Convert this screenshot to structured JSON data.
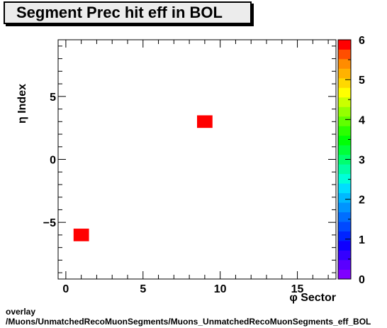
{
  "chart_data": {
    "type": "heatmap",
    "title": "Segment Prec hit eff in BOL",
    "xlabel": "φ Sector",
    "ylabel": "η Index",
    "xlim": [
      -0.5,
      17.5
    ],
    "ylim": [
      -9.5,
      9.5
    ],
    "zlim": [
      0,
      6
    ],
    "xticks": [
      0,
      5,
      10,
      15
    ],
    "yticks": [
      -5,
      0,
      5
    ],
    "zticks": [
      0,
      1,
      2,
      3,
      4,
      5,
      6
    ],
    "cells": [
      {
        "x": 1,
        "y": -6,
        "z": 6
      },
      {
        "x": 9,
        "y": 3,
        "z": 6
      }
    ],
    "palette": [
      "#7f00ff",
      "#5a00ff",
      "#3400ff",
      "#0f00ff",
      "#0024ff",
      "#0049ff",
      "#006eff",
      "#0094ff",
      "#00b9ff",
      "#00deff",
      "#00ffd9",
      "#00ffa4",
      "#00ff6f",
      "#00ff3a",
      "#00ff06",
      "#2bff00",
      "#60ff00",
      "#95ff00",
      "#caff00",
      "#ffff00",
      "#ffd800",
      "#ffb200",
      "#ff8c00",
      "#ff4e00",
      "#ff0000"
    ]
  },
  "footer": {
    "line1": "overlay",
    "line2": "/Muons/UnmatchedRecoMuonSegments/Muons_UnmatchedRecoMuonSegments_eff_BOL"
  }
}
